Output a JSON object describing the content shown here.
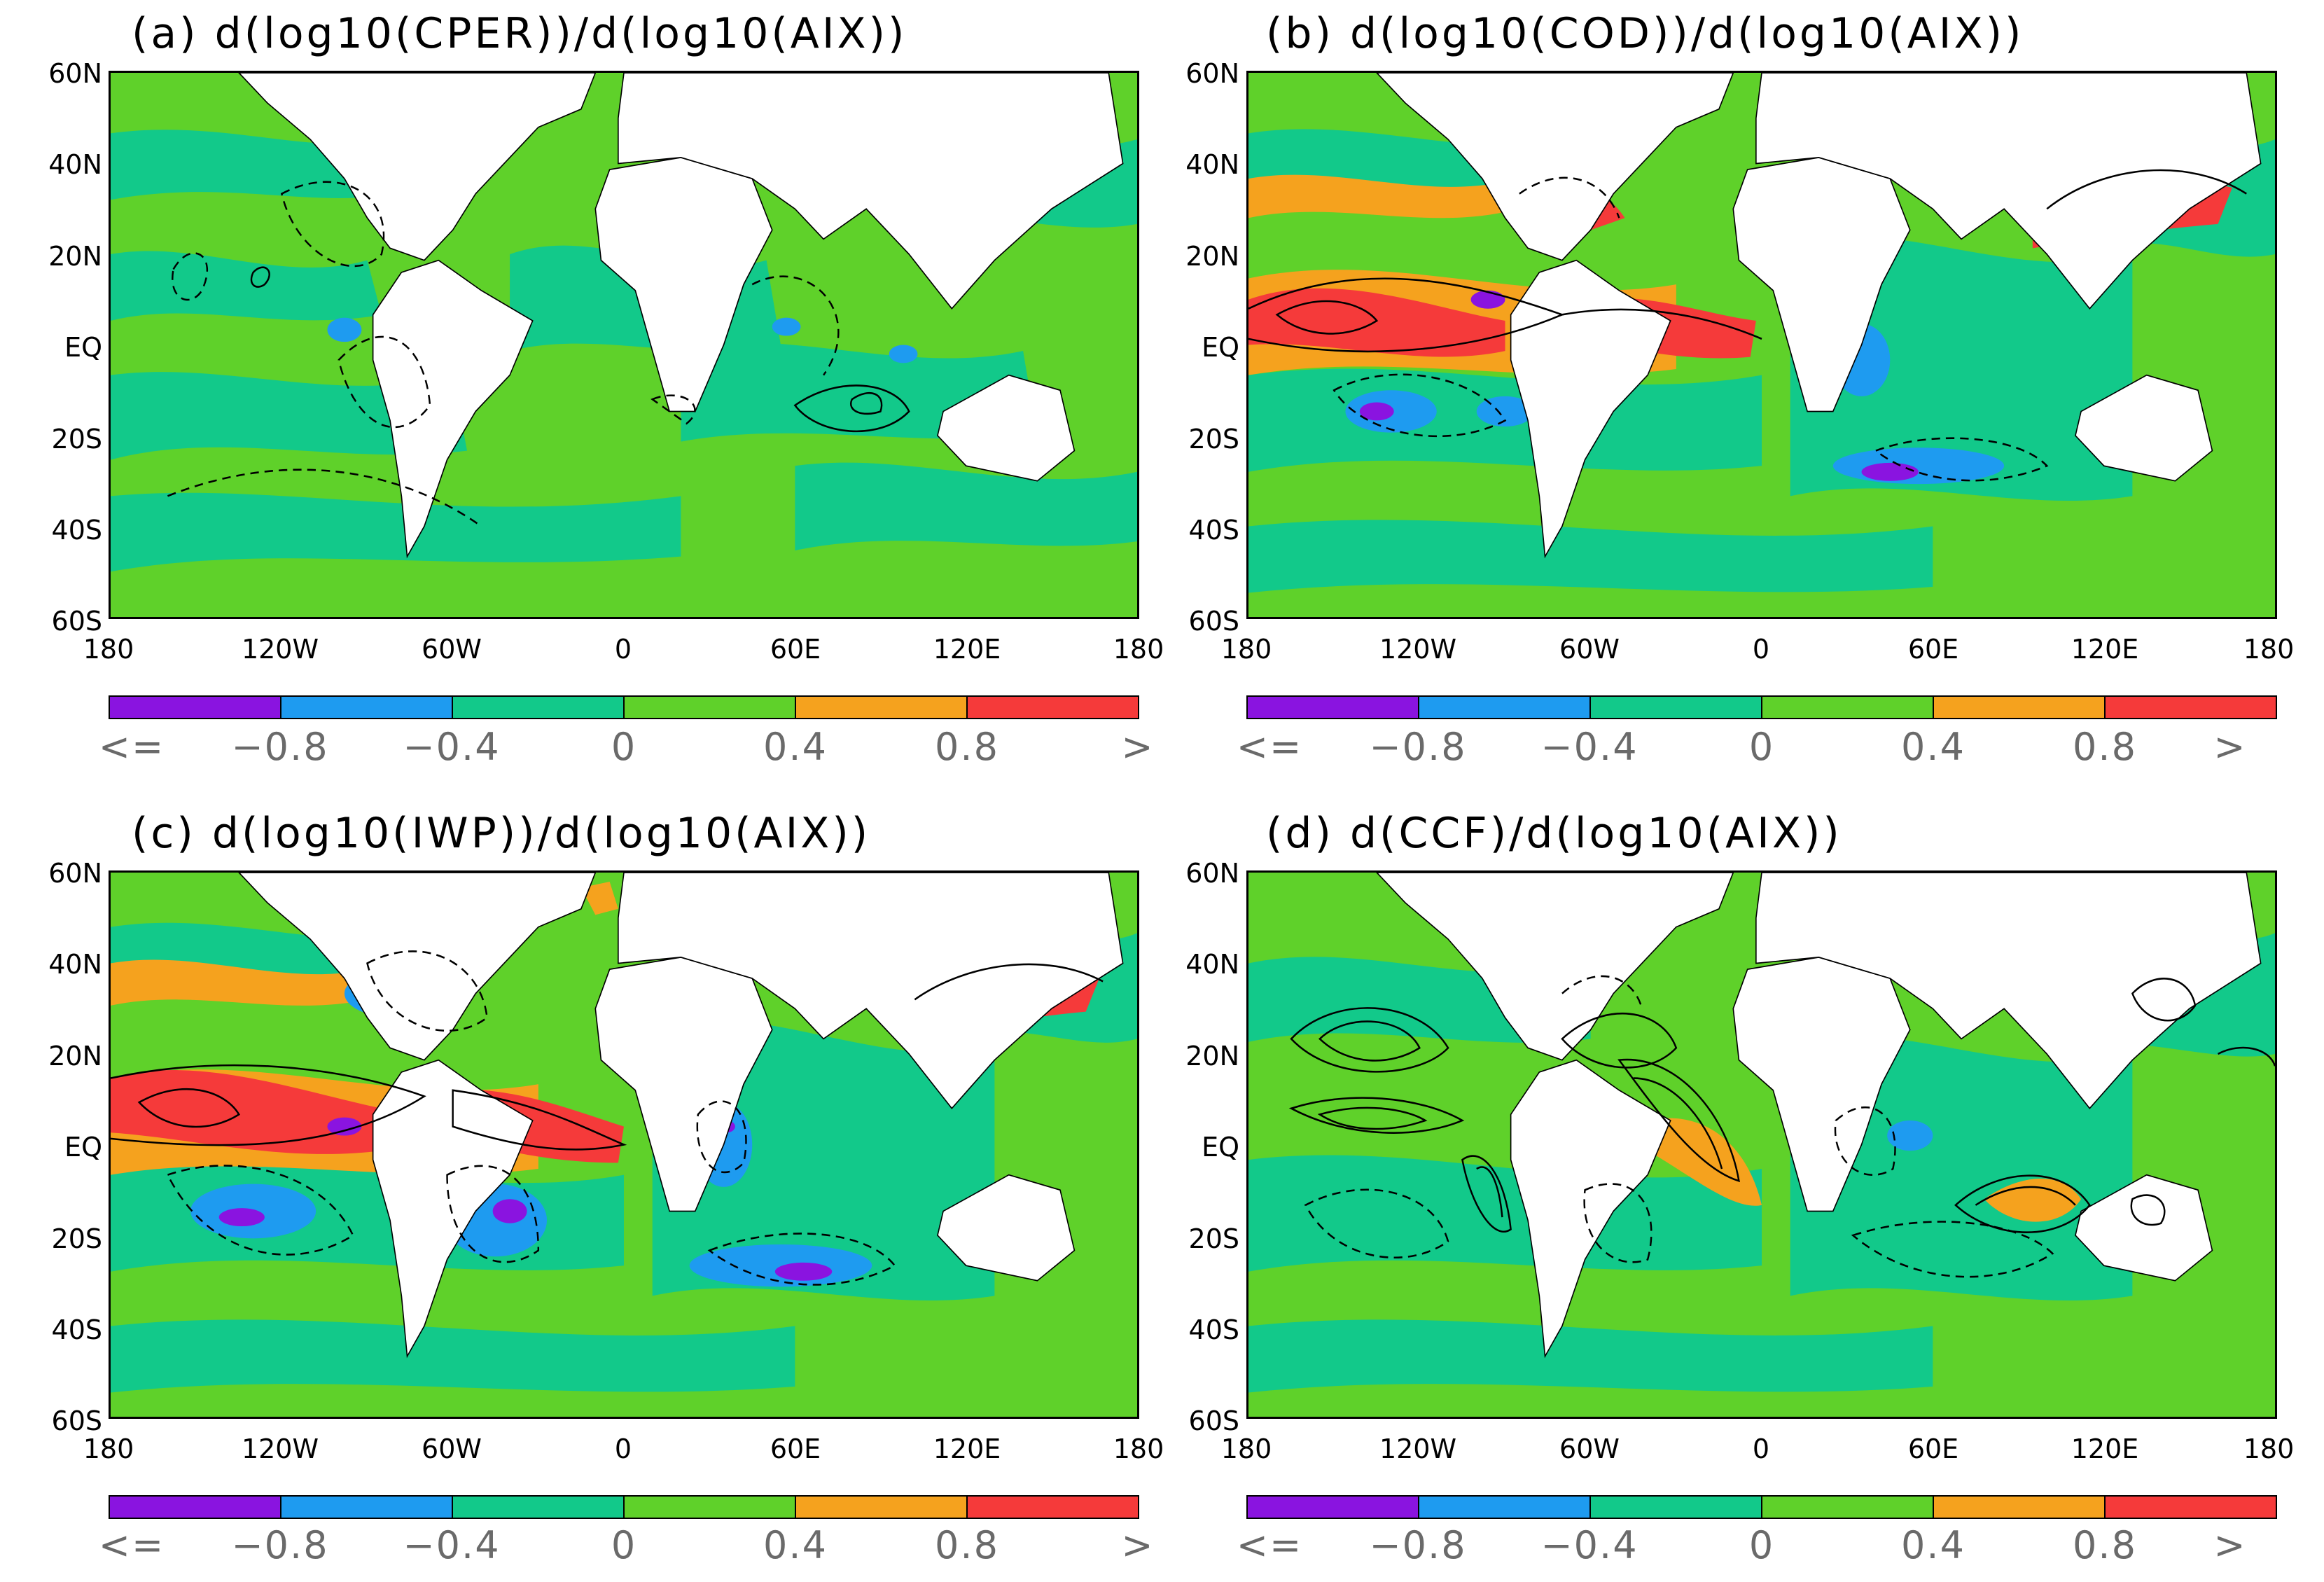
{
  "colors": {
    "purple": "#8a14e0",
    "blue": "#1e9bf0",
    "teal": "#12c98a",
    "green": "#5fd12a",
    "orange": "#f5a21e",
    "red": "#f53a3a",
    "land": "#ffffff",
    "contour": "#000000"
  },
  "lat_labels": [
    "60N",
    "40N",
    "20N",
    "EQ",
    "20S",
    "40S",
    "60S"
  ],
  "lon_labels": [
    "180",
    "120W",
    "60W",
    "0",
    "60E",
    "120E",
    "180"
  ],
  "colorbar": {
    "colors": [
      "#8a14e0",
      "#1e9bf0",
      "#12c98a",
      "#5fd12a",
      "#f5a21e",
      "#f53a3a"
    ],
    "labels": [
      "<=",
      "−0.8",
      "−0.4",
      "0",
      "0.4",
      "0.8",
      ">"
    ],
    "levels": [
      -0.8,
      -0.4,
      0,
      0.4,
      0.8
    ]
  },
  "panels": [
    {
      "id": "a",
      "title": "(a)  d(log10(CPER))/d(log10(AIX))"
    },
    {
      "id": "b",
      "title": "(b)  d(log10(COD))/d(log10(AIX))"
    },
    {
      "id": "c",
      "title": "(c)  d(log10(IWP))/d(log10(AIX))"
    },
    {
      "id": "d",
      "title": "(d)  d(CCF)/d(log10(AIX))"
    }
  ]
}
